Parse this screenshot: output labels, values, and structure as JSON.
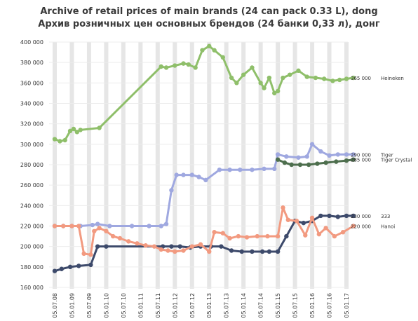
{
  "chart_data": {
    "type": "line",
    "title": "Archive of retail prices of main brands (24 can pack 0.33 L), dong",
    "subtitle": "Архив розничных цен основных брендов (24 банки 0,33 л), донг",
    "ylim": [
      160000,
      400000
    ],
    "y_ticks": [
      "160 000",
      "180 000",
      "200 000",
      "220 000",
      "240 000",
      "260 000",
      "280 000",
      "300 000",
      "320 000",
      "340 000",
      "360 000",
      "380 000",
      "400 000"
    ],
    "y_tick_values": [
      160000,
      180000,
      200000,
      220000,
      240000,
      260000,
      280000,
      300000,
      320000,
      340000,
      360000,
      380000,
      400000
    ],
    "x_ticks": [
      "05.07.08",
      "05.01.09",
      "05.07.09",
      "05.01.10",
      "05.07.10",
      "05.01.11",
      "05.07.11",
      "05.01.12",
      "05.07.12",
      "05.01.13",
      "05.07.13",
      "05.01.14",
      "05.07.14",
      "05.01.15",
      "05.07.15",
      "05.01.16",
      "05.07.16",
      "05.01.17"
    ],
    "grid": true,
    "series": [
      {
        "name": "Heineken",
        "end_label": "365 000",
        "color": "#8fbf6a",
        "x": [
          0,
          0.3,
          0.6,
          0.9,
          1.1,
          1.3,
          1.5,
          2.6,
          6.2,
          6.5,
          7.0,
          7.5,
          7.8,
          8.2,
          8.6,
          9.0,
          9.3,
          9.8,
          10.3,
          10.6,
          11.0,
          11.5,
          12.0,
          12.2,
          12.5,
          12.8,
          13.0,
          13.3,
          13.7,
          14.2,
          14.7,
          15.2,
          15.7,
          16.2,
          16.6,
          17.0,
          17.4
        ],
        "y": [
          305000,
          303000,
          304000,
          313000,
          315000,
          312000,
          314000,
          316000,
          376000,
          375000,
          377000,
          379000,
          378000,
          375000,
          392000,
          396000,
          392000,
          385000,
          365000,
          360000,
          368000,
          375000,
          360000,
          355000,
          365000,
          350000,
          352000,
          365000,
          368000,
          372000,
          366000,
          365000,
          364000,
          362000,
          363000,
          364000,
          365000
        ]
      },
      {
        "name": "Tiger",
        "end_label": "290 000",
        "color": "#9fa8e0",
        "x": [
          0,
          0.5,
          1.0,
          1.5,
          2.2,
          2.5,
          3.2,
          4.5,
          5.5,
          6.2,
          6.5,
          6.8,
          7.1,
          7.5,
          8.0,
          8.4,
          8.8,
          9.6,
          10.2,
          10.8,
          11.5,
          12.2,
          12.8,
          13.0,
          13.5,
          14.2,
          14.7,
          15.0,
          15.5,
          16.0,
          16.5,
          17.0,
          17.4
        ],
        "y": [
          220000,
          220000,
          220000,
          220000,
          221000,
          222000,
          220000,
          220000,
          220000,
          220000,
          222000,
          255000,
          270000,
          270000,
          270000,
          268000,
          265000,
          275000,
          275000,
          275000,
          275000,
          276000,
          276000,
          290000,
          288000,
          287000,
          288000,
          300000,
          293000,
          289000,
          290000,
          290000,
          290000
        ]
      },
      {
        "name": "Tiger Crystal",
        "end_label": "285 000",
        "color": "#4d6e4d",
        "x": [
          13.0,
          13.4,
          13.8,
          14.3,
          14.8,
          15.3,
          15.8,
          16.4,
          17.0,
          17.4
        ],
        "y": [
          285000,
          282000,
          280000,
          280000,
          280000,
          281000,
          282000,
          283000,
          284000,
          285000
        ]
      },
      {
        "name": "333",
        "end_label": "230 000",
        "color": "#3d4a6b",
        "x": [
          0,
          0.4,
          0.9,
          1.4,
          2.1,
          2.5,
          3.0,
          6.3,
          6.8,
          7.3,
          7.9,
          8.5,
          9.1,
          9.7,
          10.3,
          10.9,
          11.5,
          12.1,
          12.5,
          13.0,
          13.5,
          14.0,
          14.5,
          15.0,
          15.5,
          16.0,
          16.5,
          17.0,
          17.4
        ],
        "y": [
          176000,
          178000,
          180000,
          181000,
          182000,
          200000,
          200000,
          200000,
          200000,
          200000,
          199000,
          200000,
          200000,
          200000,
          196000,
          195000,
          195000,
          195000,
          195000,
          195000,
          210000,
          225000,
          223000,
          225000,
          230000,
          230000,
          229000,
          230000,
          230000
        ]
      },
      {
        "name": "Hanoi",
        "end_label": "220 000",
        "color": "#f29a80",
        "x": [
          0,
          0.5,
          1.0,
          1.4,
          1.7,
          2.1,
          2.3,
          2.6,
          3.0,
          3.4,
          3.8,
          4.3,
          4.8,
          5.3,
          5.8,
          6.2,
          6.6,
          7.0,
          7.5,
          8.0,
          8.5,
          9.0,
          9.3,
          9.8,
          10.2,
          10.7,
          11.2,
          11.8,
          12.4,
          13.0,
          13.3,
          13.6,
          14.1,
          14.6,
          15.0,
          15.4,
          15.8,
          16.3,
          16.8,
          17.4
        ],
        "y": [
          220000,
          220000,
          220000,
          220000,
          193000,
          192000,
          215000,
          218000,
          215000,
          210000,
          208000,
          205000,
          203000,
          201000,
          200000,
          197000,
          196000,
          195000,
          196000,
          200000,
          202000,
          195000,
          214000,
          213000,
          208000,
          210000,
          209000,
          210000,
          210000,
          210000,
          238000,
          226000,
          225000,
          211000,
          228000,
          212000,
          218000,
          210000,
          214000,
          220000
        ]
      }
    ]
  }
}
